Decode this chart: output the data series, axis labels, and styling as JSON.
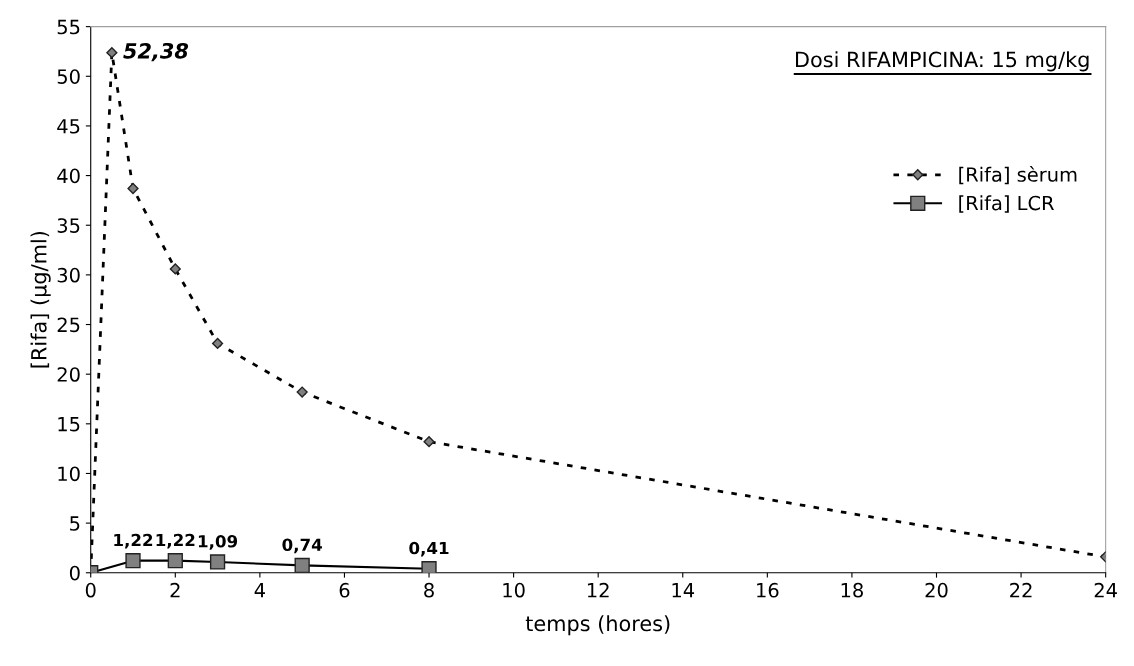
{
  "chart_data": {
    "type": "line",
    "xlabel": "temps (hores)",
    "ylabel": "[Rifa] (μg/ml)",
    "annotations": [
      "Dosi RIFAMPICINA: 15 mg/kg"
    ],
    "xlim": [
      0,
      24
    ],
    "xticks": [
      0,
      2,
      4,
      6,
      8,
      10,
      12,
      14,
      16,
      18,
      20,
      22,
      24
    ],
    "ylim": [
      0,
      55
    ],
    "yticks": [
      0,
      5,
      10,
      15,
      20,
      25,
      30,
      35,
      40,
      45,
      50,
      55
    ],
    "grid": false,
    "legend": "right",
    "series": [
      {
        "name": "[Rifa] sèrum",
        "color": "#808080",
        "marker": "diamond",
        "line_style": "dotted",
        "x": [
          0,
          0.5,
          1,
          2,
          3,
          5,
          8,
          24
        ],
        "values": [
          0,
          52.38,
          38.7,
          30.6,
          23.1,
          18.2,
          13.2,
          1.6
        ],
        "value_labels": [
          null,
          "52,38",
          null,
          null,
          null,
          null,
          null,
          null
        ]
      },
      {
        "name": "[Rifa] LCR",
        "color": "#808080",
        "marker": "square",
        "line_style": "solid",
        "x": [
          0,
          1,
          2,
          3,
          5,
          8
        ],
        "values": [
          0,
          1.22,
          1.22,
          1.09,
          0.74,
          0.41
        ],
        "value_labels": [
          null,
          "1,22",
          "1,22",
          "1,09",
          "0,74",
          "0,41"
        ]
      }
    ]
  }
}
